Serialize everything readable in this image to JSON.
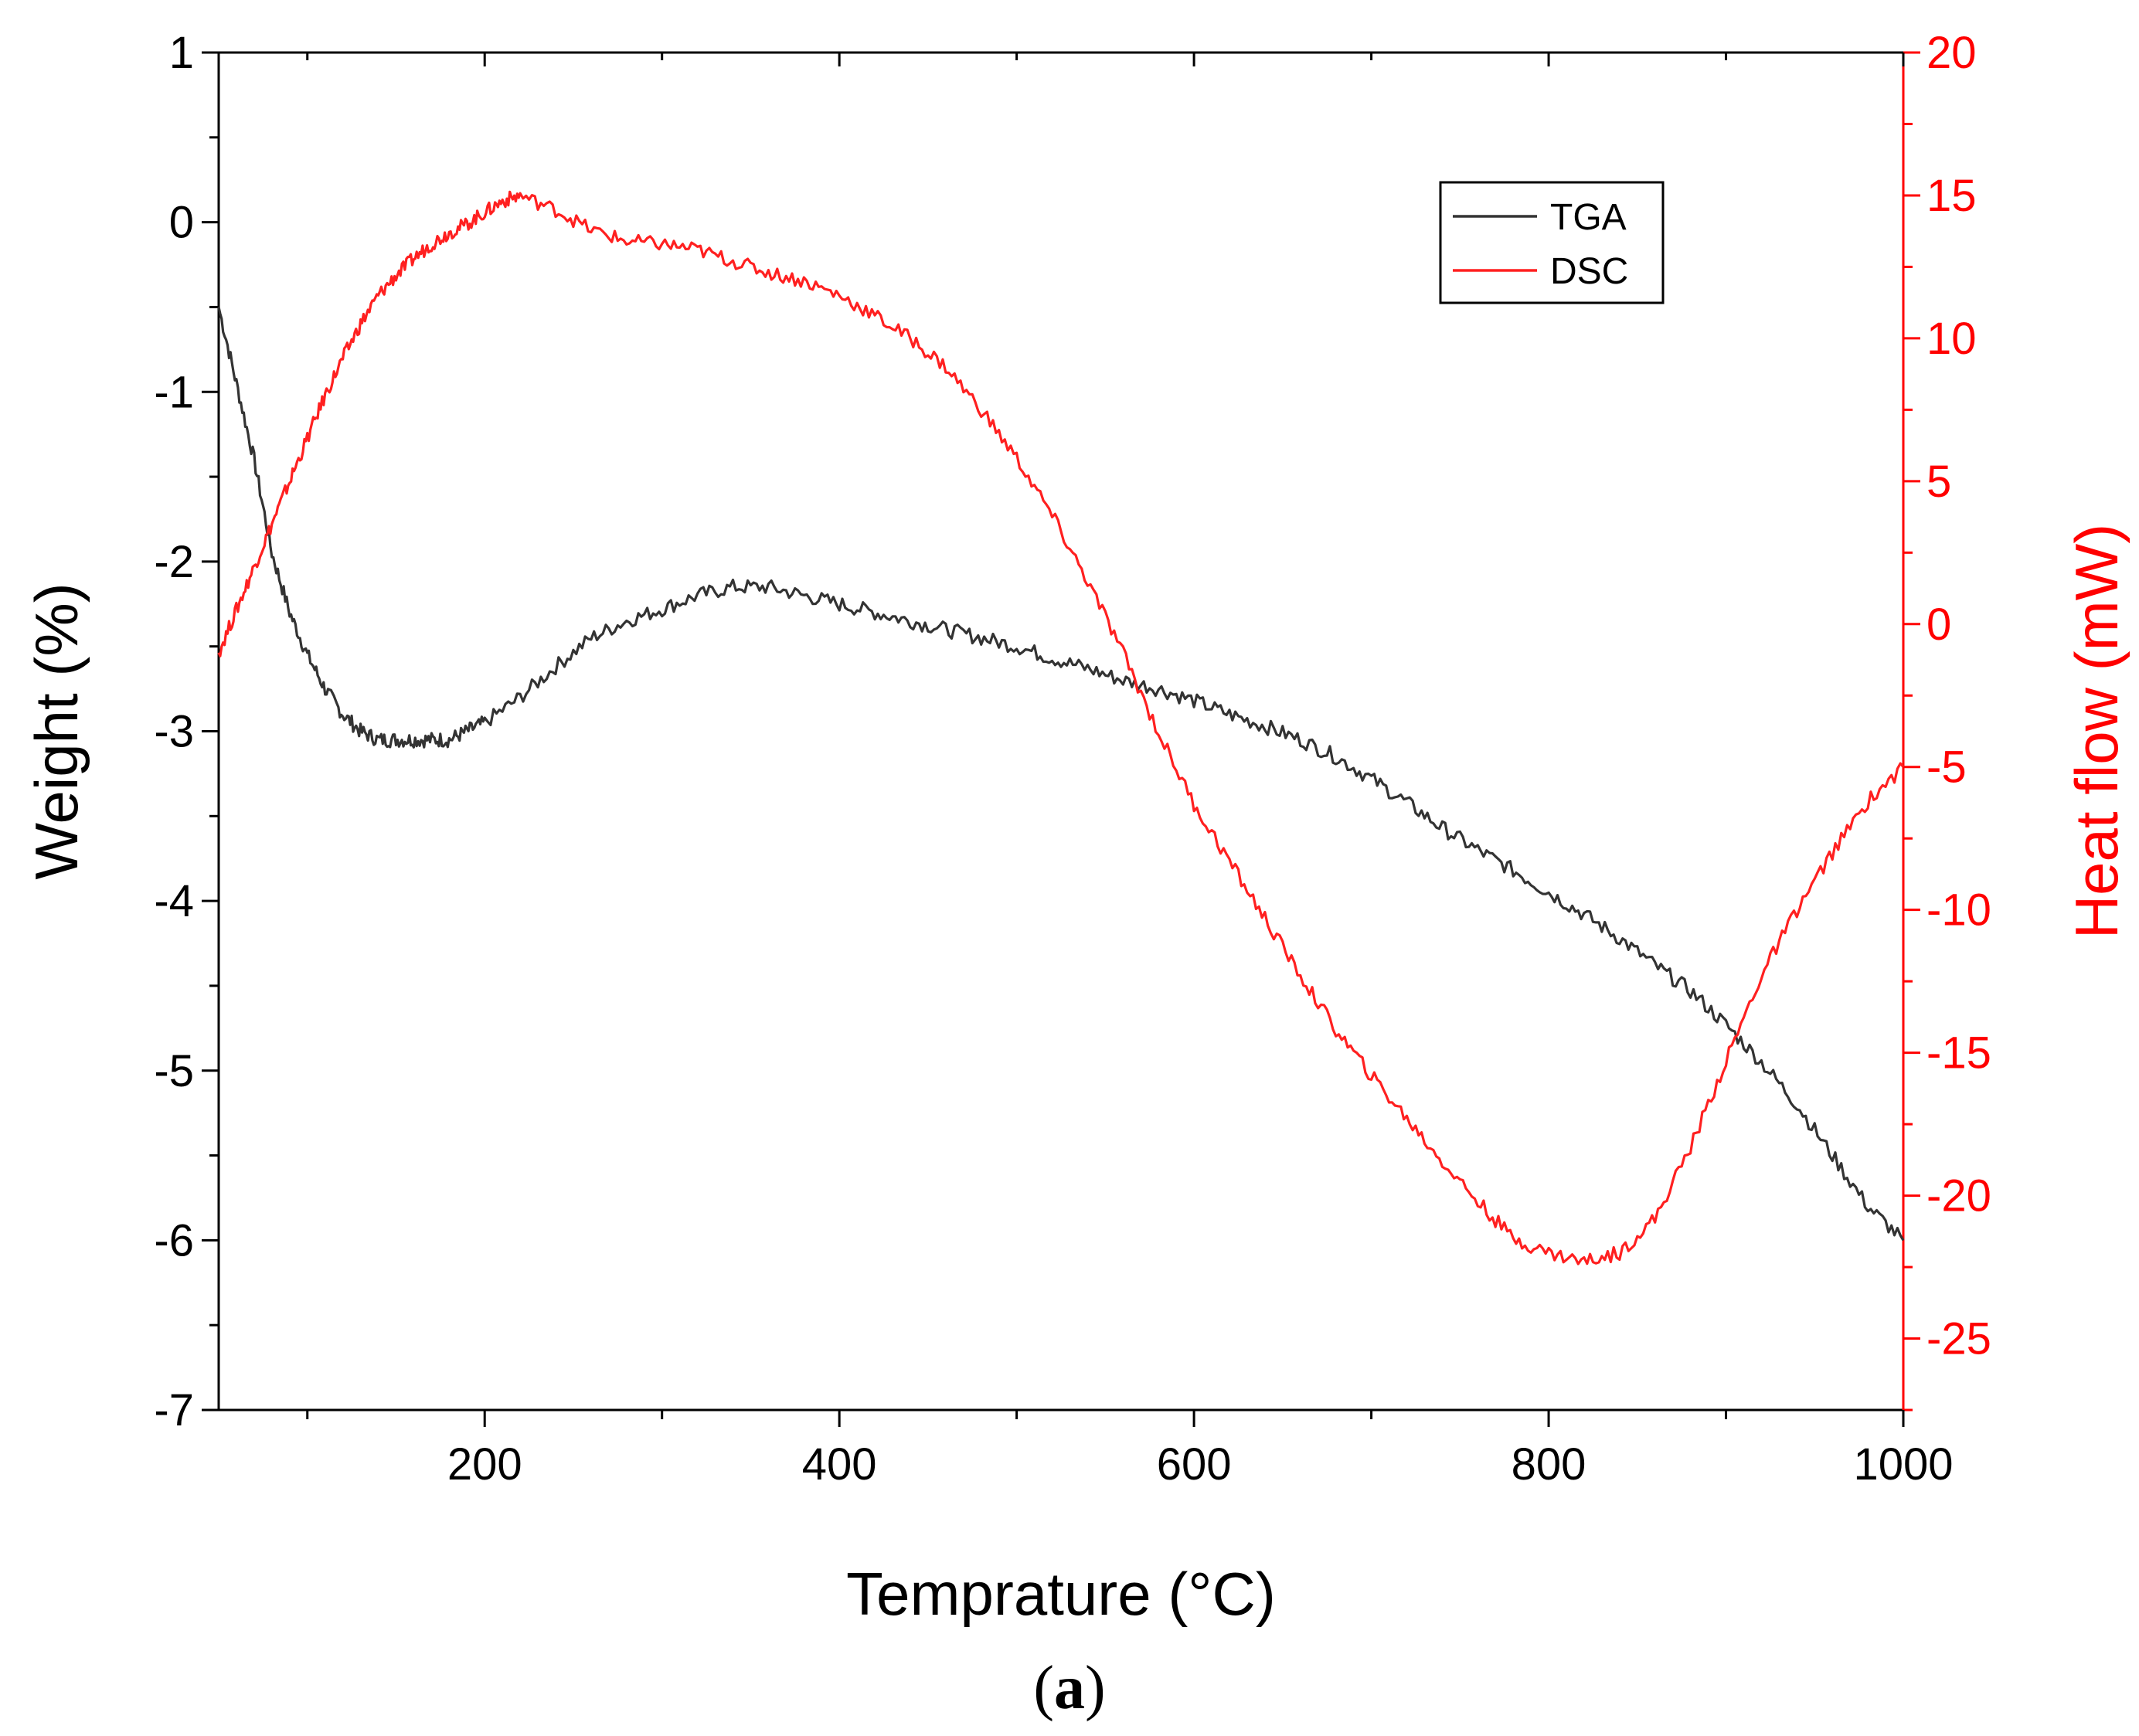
{
  "chart_data": {
    "type": "line",
    "xlabel": "Temprature (°C)",
    "xlim": [
      50,
      1000
    ],
    "xticks": [
      200,
      400,
      600,
      800,
      1000
    ],
    "y_left": {
      "label": "Weight (%)",
      "lim": [
        -7,
        1
      ],
      "ticks": [
        1,
        0,
        -1,
        -2,
        -3,
        -4,
        -5,
        -6,
        -7
      ],
      "color": "#000000"
    },
    "y_right": {
      "label": "Heat flow (mW)",
      "lim": [
        -27.5,
        20
      ],
      "ticks": [
        20,
        15,
        10,
        5,
        0,
        -5,
        -10,
        -15,
        -20,
        -25
      ],
      "color": "#ff0000"
    },
    "legend": {
      "placement": "top-right",
      "entries": [
        {
          "label": "TGA",
          "color": "#333333"
        },
        {
          "label": "DSC",
          "color": "#ff2020"
        }
      ]
    },
    "series": [
      {
        "name": "TGA",
        "axis": "left",
        "color": "#333333",
        "x": [
          50,
          60,
          70,
          80,
          90,
          100,
          110,
          120,
          130,
          140,
          150,
          160,
          170,
          180,
          190,
          200,
          220,
          240,
          260,
          280,
          300,
          320,
          340,
          360,
          380,
          400,
          420,
          440,
          460,
          480,
          500,
          520,
          540,
          560,
          580,
          600,
          620,
          640,
          660,
          680,
          700,
          720,
          740,
          760,
          780,
          800,
          820,
          840,
          860,
          880,
          900,
          920,
          940,
          960,
          980,
          1000
        ],
        "y": [
          -0.5,
          -0.95,
          -1.4,
          -1.95,
          -2.3,
          -2.55,
          -2.75,
          -2.9,
          -3.0,
          -3.05,
          -3.05,
          -3.05,
          -3.05,
          -3.05,
          -3.0,
          -2.95,
          -2.8,
          -2.62,
          -2.45,
          -2.35,
          -2.28,
          -2.2,
          -2.15,
          -2.15,
          -2.2,
          -2.25,
          -2.3,
          -2.35,
          -2.4,
          -2.45,
          -2.5,
          -2.57,
          -2.63,
          -2.7,
          -2.75,
          -2.82,
          -2.9,
          -2.97,
          -3.05,
          -3.15,
          -3.28,
          -3.42,
          -3.57,
          -3.7,
          -3.82,
          -3.95,
          -4.08,
          -4.22,
          -4.38,
          -4.53,
          -4.73,
          -4.95,
          -5.2,
          -5.5,
          -5.8,
          -6.0
        ]
      },
      {
        "name": "DSC",
        "axis": "right",
        "color": "#ff2020",
        "x": [
          50,
          60,
          70,
          80,
          90,
          100,
          110,
          120,
          130,
          140,
          150,
          160,
          170,
          180,
          190,
          200,
          210,
          220,
          240,
          260,
          280,
          300,
          320,
          340,
          360,
          380,
          400,
          420,
          440,
          460,
          480,
          500,
          520,
          540,
          560,
          580,
          600,
          620,
          640,
          660,
          680,
          700,
          720,
          740,
          760,
          780,
          800,
          820,
          840,
          860,
          880,
          900,
          920,
          940,
          960,
          980,
          1000
        ],
        "y": [
          -1.0,
          0.5,
          2.0,
          3.5,
          5.0,
          6.5,
          8.0,
          9.3,
          10.5,
          11.5,
          12.2,
          12.8,
          13.3,
          13.7,
          14.0,
          14.4,
          14.8,
          15.0,
          14.5,
          13.8,
          13.4,
          13.3,
          13.1,
          12.7,
          12.3,
          12.0,
          11.5,
          10.8,
          10.0,
          9.0,
          7.5,
          5.8,
          3.8,
          1.5,
          -1.0,
          -3.8,
          -6.3,
          -8.3,
          -10.3,
          -12.3,
          -14.2,
          -15.8,
          -17.3,
          -18.8,
          -20.2,
          -21.5,
          -22.0,
          -22.3,
          -22.0,
          -20.8,
          -18.3,
          -15.3,
          -12.3,
          -10.0,
          -8.0,
          -6.2,
          -5.0
        ]
      }
    ]
  },
  "caption": {
    "paren_open": "(",
    "letter": "a",
    "paren_close": ")"
  }
}
